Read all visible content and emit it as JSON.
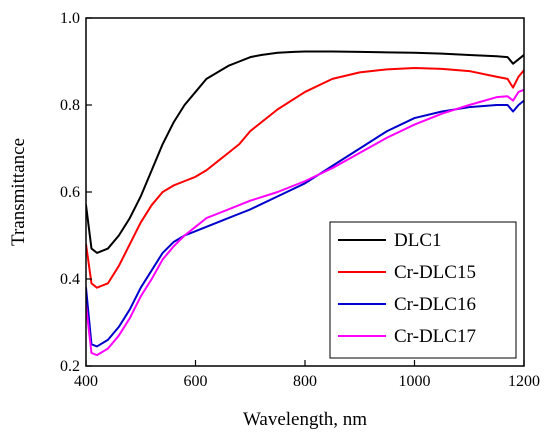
{
  "chart_data": {
    "type": "line",
    "title": "",
    "xlabel": "Wavelength, nm",
    "ylabel": "Transmittance",
    "xlim": [
      400,
      1200
    ],
    "ylim": [
      0.2,
      1.0
    ],
    "xticks": [
      400,
      600,
      800,
      1000,
      1200
    ],
    "yticks": [
      0.2,
      0.4,
      0.6,
      0.8,
      1.0
    ],
    "xtick_labels": [
      "400",
      "600",
      "800",
      "1000",
      "1200"
    ],
    "ytick_labels": [
      "0.2",
      "0.4",
      "0.6",
      "0.8",
      "1.0"
    ],
    "grid": false,
    "legend_position": "bottom-right",
    "series": [
      {
        "name": "DLC1",
        "color": "#000000",
        "x": [
          400,
          410,
          420,
          440,
          460,
          480,
          500,
          520,
          540,
          560,
          580,
          600,
          620,
          640,
          660,
          680,
          700,
          720,
          750,
          780,
          800,
          850,
          900,
          950,
          1000,
          1050,
          1100,
          1150,
          1170,
          1180,
          1190,
          1200
        ],
        "y": [
          0.57,
          0.47,
          0.46,
          0.47,
          0.5,
          0.54,
          0.59,
          0.65,
          0.71,
          0.76,
          0.8,
          0.83,
          0.86,
          0.875,
          0.89,
          0.9,
          0.91,
          0.915,
          0.92,
          0.922,
          0.923,
          0.923,
          0.922,
          0.921,
          0.92,
          0.918,
          0.915,
          0.912,
          0.91,
          0.895,
          0.905,
          0.915
        ]
      },
      {
        "name": "Cr-DLC15",
        "color": "#ff0000",
        "x": [
          400,
          410,
          420,
          440,
          460,
          480,
          500,
          520,
          540,
          560,
          580,
          600,
          620,
          640,
          660,
          680,
          700,
          750,
          800,
          850,
          900,
          950,
          1000,
          1050,
          1100,
          1150,
          1170,
          1180,
          1190,
          1200
        ],
        "y": [
          0.48,
          0.39,
          0.38,
          0.39,
          0.43,
          0.48,
          0.53,
          0.57,
          0.6,
          0.615,
          0.625,
          0.635,
          0.65,
          0.67,
          0.69,
          0.71,
          0.74,
          0.79,
          0.83,
          0.86,
          0.875,
          0.882,
          0.885,
          0.883,
          0.878,
          0.865,
          0.86,
          0.84,
          0.865,
          0.88
        ]
      },
      {
        "name": "Cr-DLC16",
        "color": "#0000cc",
        "x": [
          400,
          410,
          420,
          440,
          460,
          480,
          500,
          520,
          540,
          560,
          580,
          600,
          620,
          640,
          660,
          680,
          700,
          750,
          800,
          850,
          900,
          950,
          1000,
          1050,
          1100,
          1150,
          1170,
          1180,
          1190,
          1200
        ],
        "y": [
          0.38,
          0.25,
          0.245,
          0.26,
          0.29,
          0.33,
          0.38,
          0.42,
          0.46,
          0.485,
          0.5,
          0.51,
          0.52,
          0.53,
          0.54,
          0.55,
          0.56,
          0.59,
          0.62,
          0.66,
          0.7,
          0.74,
          0.77,
          0.785,
          0.795,
          0.8,
          0.8,
          0.785,
          0.8,
          0.81
        ]
      },
      {
        "name": "Cr-DLC17",
        "color": "#ff00ff",
        "x": [
          400,
          410,
          420,
          440,
          460,
          480,
          500,
          520,
          540,
          560,
          580,
          600,
          620,
          640,
          660,
          680,
          700,
          750,
          800,
          850,
          900,
          950,
          1000,
          1050,
          1100,
          1150,
          1170,
          1180,
          1190,
          1200
        ],
        "y": [
          0.34,
          0.23,
          0.225,
          0.24,
          0.27,
          0.31,
          0.36,
          0.4,
          0.445,
          0.475,
          0.5,
          0.52,
          0.54,
          0.55,
          0.56,
          0.57,
          0.58,
          0.6,
          0.625,
          0.655,
          0.69,
          0.725,
          0.755,
          0.78,
          0.8,
          0.818,
          0.82,
          0.81,
          0.83,
          0.835
        ]
      }
    ]
  }
}
